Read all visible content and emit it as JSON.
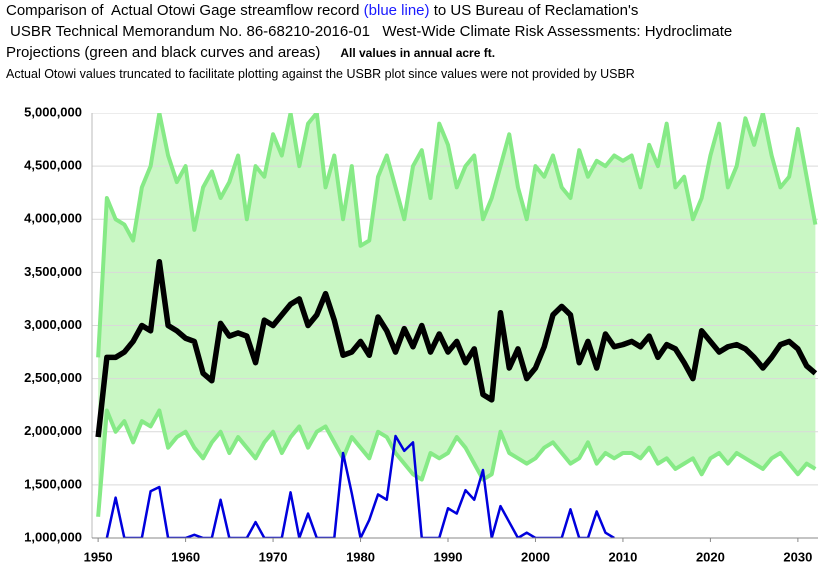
{
  "chart_data": {
    "type": "line",
    "title": {
      "line1": [
        "Comparison of  Actual Otowi Gage streamflow record ",
        "(blue line)",
        " to US Bureau of Reclamation's"
      ],
      "line2": "USBR Technical Memorandum No. 86-68210-2016-01   West-Wide Climate Risk Assessments: Hydroclimate",
      "line3": "Projections (green and black curves and areas)",
      "note": "All values in annual acre ft."
    },
    "subtitle": "Actual Otowi values truncated to facilitate plotting against the USBR plot since values were not provided by USBR",
    "x": [
      1950,
      1951,
      1952,
      1953,
      1954,
      1955,
      1956,
      1957,
      1958,
      1959,
      1960,
      1961,
      1962,
      1963,
      1964,
      1965,
      1966,
      1967,
      1968,
      1969,
      1970,
      1971,
      1972,
      1973,
      1974,
      1975,
      1976,
      1977,
      1978,
      1979,
      1980,
      1981,
      1982,
      1983,
      1984,
      1985,
      1986,
      1987,
      1988,
      1989,
      1990,
      1991,
      1992,
      1993,
      1994,
      1995,
      1996,
      1997,
      1998,
      1999,
      2000,
      2001,
      2002,
      2003,
      2004,
      2005,
      2006,
      2007,
      2008,
      2009,
      2010,
      2011,
      2012,
      2013,
      2014,
      2015,
      2016,
      2017,
      2018,
      2019,
      2020,
      2021,
      2022,
      2023,
      2024,
      2025,
      2026,
      2027,
      2028,
      2029,
      2030,
      2031,
      2032
    ],
    "series": [
      {
        "color": "#86ea86",
        "values": [
          2700000,
          4200000,
          4000000,
          3950000,
          3800000,
          4300000,
          4500000,
          5000000,
          4600000,
          4350000,
          4500000,
          3900000,
          4300000,
          4450000,
          4200000,
          4350000,
          4600000,
          4000000,
          4500000,
          4400000,
          4800000,
          4600000,
          5000000,
          4500000,
          4900000,
          5000000,
          4300000,
          4600000,
          4000000,
          4500000,
          3750000,
          3800000,
          4400000,
          4600000,
          4300000,
          4000000,
          4500000,
          4650000,
          4200000,
          4900000,
          4700000,
          4300000,
          4500000,
          4600000,
          4000000,
          4200000,
          4500000,
          4800000,
          4300000,
          4000000,
          4500000,
          4400000,
          4600000,
          4300000,
          4200000,
          4650000,
          4400000,
          4550000,
          4500000,
          4600000,
          4550000,
          4600000,
          4300000,
          4700000,
          4500000,
          4900000,
          4300000,
          4400000,
          4000000,
          4200000,
          4600000,
          4900000,
          4300000,
          4500000,
          4950000,
          4700000,
          5000000,
          4600000,
          4300000,
          4400000,
          4850000,
          4400000,
          3950000
        ]
      },
      {
        "color": "#86ea86",
        "values": [
          1200000,
          2200000,
          2000000,
          2100000,
          1900000,
          2100000,
          2050000,
          2200000,
          1850000,
          1950000,
          2000000,
          1850000,
          1750000,
          1900000,
          2000000,
          1800000,
          1950000,
          1850000,
          1750000,
          1900000,
          2000000,
          1800000,
          1950000,
          2050000,
          1850000,
          2000000,
          2050000,
          1900000,
          1750000,
          1950000,
          1850000,
          1750000,
          2000000,
          1950000,
          1800000,
          1700000,
          1600000,
          1550000,
          1800000,
          1750000,
          1800000,
          1950000,
          1850000,
          1700000,
          1550000,
          1600000,
          2000000,
          1800000,
          1750000,
          1700000,
          1750000,
          1850000,
          1900000,
          1800000,
          1700000,
          1750000,
          1900000,
          1700000,
          1800000,
          1750000,
          1800000,
          1800000,
          1750000,
          1850000,
          1700000,
          1750000,
          1650000,
          1700000,
          1750000,
          1600000,
          1750000,
          1800000,
          1700000,
          1800000,
          1750000,
          1700000,
          1650000,
          1750000,
          1800000,
          1700000,
          1600000,
          1700000,
          1650000
        ]
      },
      {
        "color": "#000000",
        "values": [
          1950000,
          2700000,
          2700000,
          2750000,
          2850000,
          3000000,
          2950000,
          3600000,
          3000000,
          2950000,
          2880000,
          2850000,
          2550000,
          2480000,
          3020000,
          2900000,
          2930000,
          2900000,
          2650000,
          3050000,
          3000000,
          3100000,
          3200000,
          3250000,
          3000000,
          3100000,
          3300000,
          3050000,
          2720000,
          2750000,
          2850000,
          2720000,
          3080000,
          2950000,
          2750000,
          2970000,
          2800000,
          3000000,
          2750000,
          2920000,
          2750000,
          2850000,
          2650000,
          2780000,
          2350000,
          2300000,
          3120000,
          2600000,
          2780000,
          2500000,
          2600000,
          2800000,
          3100000,
          3180000,
          3100000,
          2650000,
          2850000,
          2600000,
          2920000,
          2800000,
          2820000,
          2850000,
          2800000,
          2900000,
          2700000,
          2820000,
          2780000,
          2650000,
          2500000,
          2950000,
          2850000,
          2750000,
          2800000,
          2820000,
          2780000,
          2700000,
          2600000,
          2700000,
          2820000,
          2850000,
          2780000,
          2620000,
          2550000
        ]
      },
      {
        "color": "#0000dd",
        "x": [
          1951,
          1952,
          1953,
          1954,
          1955,
          1956,
          1957,
          1958,
          1959,
          1960,
          1961,
          1962,
          1963,
          1964,
          1965,
          1966,
          1967,
          1968,
          1969,
          1970,
          1971,
          1972,
          1973,
          1974,
          1975,
          1976,
          1977,
          1978,
          1979,
          1980,
          1981,
          1982,
          1983,
          1984,
          1985,
          1986,
          1987,
          1988,
          1989,
          1990,
          1991,
          1992,
          1993,
          1994,
          1995,
          1996,
          1997,
          1998,
          1999,
          2000,
          2001,
          2002,
          2003,
          2004,
          2005,
          2006,
          2007,
          2008,
          2009
        ],
        "values": [
          1000000,
          1380000,
          1000000,
          1000000,
          1000000,
          1440000,
          1480000,
          1000000,
          1000000,
          1000000,
          1030000,
          1000000,
          1000000,
          1360000,
          1000000,
          1000000,
          1000000,
          1150000,
          1000000,
          1000000,
          1000000,
          1430000,
          1000000,
          1230000,
          1000000,
          1000000,
          1000000,
          1800000,
          1420000,
          1000000,
          1170000,
          1410000,
          1360000,
          1960000,
          1820000,
          1900000,
          1000000,
          1000000,
          1000000,
          1280000,
          1230000,
          1450000,
          1360000,
          1640000,
          1000000,
          1300000,
          1150000,
          1000000,
          1050000,
          1000000,
          1000000,
          1000000,
          1000000,
          1270000,
          1000000,
          1000000,
          1250000,
          1050000,
          1000000
        ]
      }
    ],
    "band": [
      0,
      1
    ],
    "band_color": "#c9f7c4",
    "xlim": [
      1949.3,
      2032.3
    ],
    "ylim": [
      1000000,
      5000000
    ],
    "xticks": [
      1950,
      1960,
      1970,
      1980,
      1990,
      2000,
      2010,
      2020,
      2030
    ],
    "yticks": [
      {
        "value": 1000000,
        "label": "1,000,000"
      },
      {
        "value": 1500000,
        "label": "1,500,000"
      },
      {
        "value": 2000000,
        "label": "2,000,000"
      },
      {
        "value": 2500000,
        "label": "2,500,000"
      },
      {
        "value": 3000000,
        "label": "3,000,000"
      },
      {
        "value": 3500000,
        "label": "3,500,000"
      },
      {
        "value": 4000000,
        "label": "4,000,000"
      },
      {
        "value": 4500000,
        "label": "4,500,000"
      },
      {
        "value": 5000000,
        "label": "5,000,000"
      }
    ],
    "grid": true
  }
}
